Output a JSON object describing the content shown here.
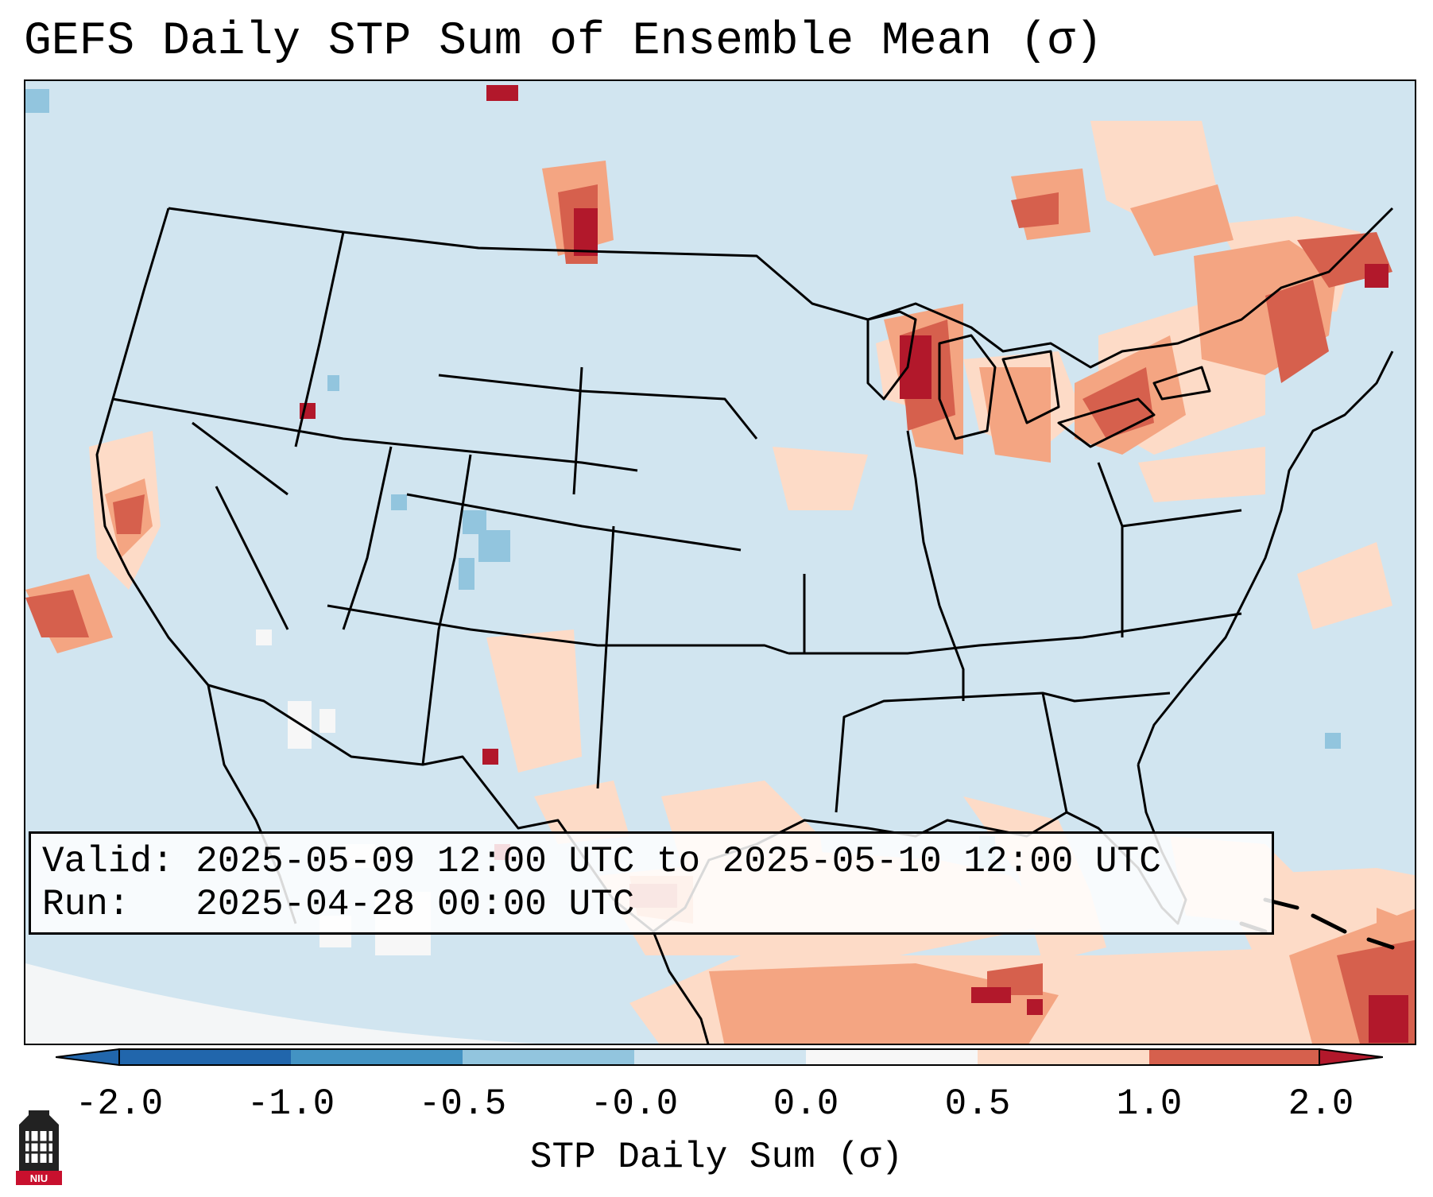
{
  "title": "GEFS Daily STP Sum of Ensemble Mean (σ)",
  "info": {
    "valid_line": "Valid: 2025-05-09 12:00 UTC to 2025-05-10 12:00 UTC",
    "run_line": "Run:   2025-04-28 00:00 UTC"
  },
  "colorbar": {
    "label": "STP Daily Sum (σ)",
    "ticks": [
      "-2.0",
      "-1.0",
      "-0.5",
      "-0.0",
      "0.0",
      "0.5",
      "1.0",
      "2.0"
    ],
    "colors": [
      "#2166ac",
      "#4393c3",
      "#92c5de",
      "#d1e5f0",
      "#f7f7f7",
      "#fddbc7",
      "#f4a582",
      "#d6604d",
      "#b2182b"
    ]
  },
  "map": {
    "background_color": "#d1e5f0",
    "regions": [
      "CONUS",
      "southern Canada",
      "northern Mexico",
      "Gulf of Mexico",
      "Caribbean"
    ]
  },
  "logo": {
    "text": "NIU"
  }
}
